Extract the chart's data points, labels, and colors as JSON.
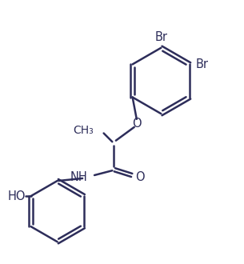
{
  "background_color": "#ffffff",
  "line_color": "#2d2d5a",
  "line_width": 1.8,
  "font_size": 10.5,
  "figsize": [
    3.05,
    3.3
  ],
  "dpi": 100,
  "xlim": [
    0,
    10
  ],
  "ylim": [
    0,
    10.8
  ]
}
